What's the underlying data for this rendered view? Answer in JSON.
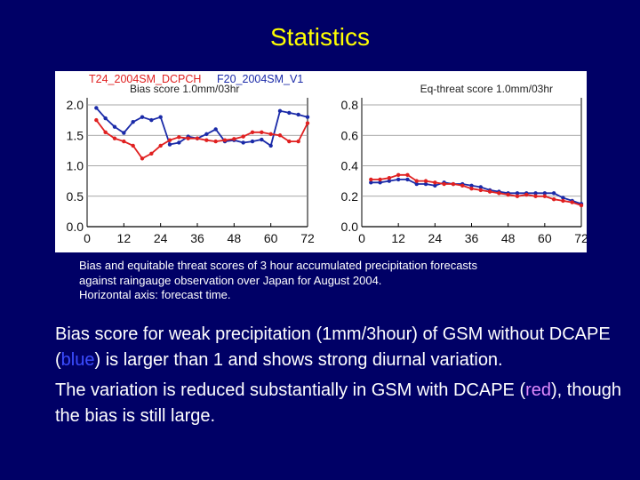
{
  "slide": {
    "title": "Statistics"
  },
  "figure": {
    "legend": {
      "red_label": "T24_2004SM_DCPCH",
      "blue_label": "F20_2004SM_V1"
    },
    "colors": {
      "red": "#e02020",
      "blue": "#1a2aa8"
    }
  },
  "chart_data": [
    {
      "type": "line",
      "title": "Bias score 1.0mm/03hr",
      "xlabel": "",
      "ylabel": "",
      "xlim": [
        0,
        72
      ],
      "ylim": [
        0,
        2.0
      ],
      "grid": false,
      "xticks": [
        "0",
        "12",
        "24",
        "36",
        "48",
        "60",
        "72"
      ],
      "yticks": [
        "0.0",
        "0.5",
        "1.0",
        "1.5",
        "2.0"
      ],
      "x": [
        3,
        6,
        9,
        12,
        15,
        18,
        21,
        24,
        27,
        30,
        33,
        36,
        39,
        42,
        45,
        48,
        51,
        54,
        57,
        60,
        63,
        66,
        69,
        72
      ],
      "series": [
        {
          "name": "F20_2004SM_V1",
          "color": "#1a2aa8",
          "values": [
            1.95,
            1.78,
            1.64,
            1.54,
            1.72,
            1.8,
            1.75,
            1.8,
            1.35,
            1.38,
            1.48,
            1.45,
            1.52,
            1.6,
            1.4,
            1.42,
            1.38,
            1.4,
            1.43,
            1.33,
            1.9,
            1.87,
            1.84,
            1.8
          ]
        },
        {
          "name": "T24_2004SM_DCPCH",
          "color": "#e02020",
          "values": [
            1.75,
            1.55,
            1.45,
            1.4,
            1.33,
            1.12,
            1.2,
            1.33,
            1.42,
            1.47,
            1.45,
            1.45,
            1.42,
            1.4,
            1.42,
            1.44,
            1.48,
            1.55,
            1.55,
            1.52,
            1.5,
            1.4,
            1.4,
            1.7
          ]
        }
      ]
    },
    {
      "type": "line",
      "title": "Eq-threat score 1.0mm/03hr",
      "xlabel": "",
      "ylabel": "",
      "xlim": [
        0,
        72
      ],
      "ylim": [
        0,
        0.8
      ],
      "grid": false,
      "xticks": [
        "0",
        "12",
        "24",
        "36",
        "48",
        "60",
        "72"
      ],
      "yticks": [
        "0.0",
        "0.2",
        "0.4",
        "0.6",
        "0.8"
      ],
      "x": [
        3,
        6,
        9,
        12,
        15,
        18,
        21,
        24,
        27,
        30,
        33,
        36,
        39,
        42,
        45,
        48,
        51,
        54,
        57,
        60,
        63,
        66,
        69,
        72
      ],
      "series": [
        {
          "name": "F20_2004SM_V1",
          "color": "#1a2aa8",
          "values": [
            0.29,
            0.29,
            0.3,
            0.31,
            0.31,
            0.28,
            0.28,
            0.27,
            0.29,
            0.28,
            0.28,
            0.27,
            0.26,
            0.24,
            0.23,
            0.22,
            0.22,
            0.22,
            0.22,
            0.22,
            0.22,
            0.19,
            0.17,
            0.15
          ]
        },
        {
          "name": "T24_2004SM_DCPCH",
          "color": "#e02020",
          "values": [
            0.31,
            0.31,
            0.32,
            0.34,
            0.34,
            0.3,
            0.3,
            0.29,
            0.28,
            0.28,
            0.27,
            0.25,
            0.24,
            0.23,
            0.22,
            0.21,
            0.2,
            0.21,
            0.2,
            0.2,
            0.18,
            0.17,
            0.16,
            0.14
          ]
        }
      ]
    }
  ],
  "caption": {
    "line1": "Bias and equitable threat scores of 3 hour accumulated precipitation forecasts",
    "line2": "against raingauge observation over Japan for August 2004.",
    "line3": "Horizontal axis: forecast time."
  },
  "body": {
    "p1_before": "Bias score for weak precipitation (1mm/3hour) of GSM without DCAPE (",
    "p1_blue": "blue",
    "p1_after": ") is larger than 1 and shows strong diurnal variation.",
    "p2_before": "The variation is reduced substantially in GSM with DCAPE (",
    "p2_red": "red",
    "p2_after": "), though the bias is still large."
  }
}
